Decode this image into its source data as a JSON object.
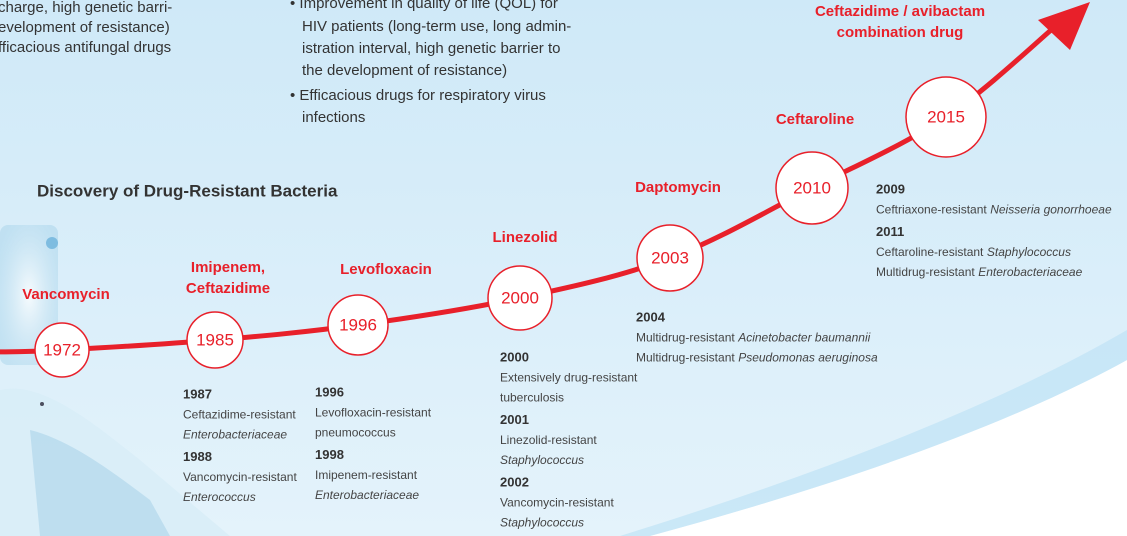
{
  "top_left": [
    "charge, high genetic barri-",
    "evelopment of resistance)",
    "fficacious antifungal drugs"
  ],
  "top_middle": [
    "• Improvement in quality of life (QOL) for",
    "HIV patients (long-term use, long admin-",
    "istration interval, high genetic barrier to",
    "the development of resistance)",
    "• Efficacious drugs for respiratory virus",
    "infections"
  ],
  "section_title": "Discovery of Drug-Resistant Bacteria",
  "nodes": [
    {
      "year": "1972",
      "drug": [
        "Vancomycin"
      ]
    },
    {
      "year": "1985",
      "drug": [
        "Imipenem,",
        "Ceftazidime"
      ]
    },
    {
      "year": "1996",
      "drug": [
        "Levofloxacin"
      ]
    },
    {
      "year": "2000",
      "drug": [
        "Linezolid"
      ]
    },
    {
      "year": "2003",
      "drug": [
        "Daptomycin"
      ]
    },
    {
      "year": "2010",
      "drug": [
        "Ceftaroline"
      ]
    },
    {
      "year": "2015",
      "drug": [
        "Ceftazidime / avibactam",
        "combination drug"
      ]
    }
  ],
  "notes": [
    {
      "entries": [
        {
          "year": "1987",
          "lines": [
            [
              {
                "text": "Ceftazidime-resistant"
              }
            ],
            [
              {
                "text": "Enterobacteriaceae",
                "italic": true
              }
            ]
          ]
        },
        {
          "year": "1988",
          "lines": [
            [
              {
                "text": "Vancomycin-resistant"
              }
            ],
            [
              {
                "text": "Enterococcus",
                "italic": true
              }
            ]
          ]
        }
      ]
    },
    {
      "entries": [
        {
          "year": "1996",
          "lines": [
            [
              {
                "text": "Levofloxacin-resistant"
              }
            ],
            [
              {
                "text": "pneumococcus"
              }
            ]
          ]
        },
        {
          "year": "1998",
          "lines": [
            [
              {
                "text": "Imipenem-resistant"
              }
            ],
            [
              {
                "text": "Enterobacteriaceae",
                "italic": true
              }
            ]
          ]
        }
      ]
    },
    {
      "entries": [
        {
          "year": "2000",
          "lines": [
            [
              {
                "text": "Extensively drug-resistant"
              }
            ],
            [
              {
                "text": "tuberculosis"
              }
            ]
          ]
        },
        {
          "year": "2001",
          "lines": [
            [
              {
                "text": "Linezolid-resistant"
              }
            ],
            [
              {
                "text": "Staphylococcus",
                "italic": true
              }
            ]
          ]
        },
        {
          "year": "2002",
          "lines": [
            [
              {
                "text": "Vancomycin-resistant"
              }
            ],
            [
              {
                "text": "Staphylococcus",
                "italic": true
              }
            ]
          ]
        }
      ]
    },
    {
      "entries": [
        {
          "year": "2004",
          "lines": [
            [
              {
                "text": "Multidrug-resistant"
              },
              {
                "text": "Acinetobacter baumannii",
                "italic": true
              }
            ],
            [
              {
                "text": "Multidrug-resistant"
              },
              {
                "text": "Pseudomonas aeruginosa",
                "italic": true
              }
            ]
          ]
        }
      ]
    },
    {
      "entries": [
        {
          "year": "2009",
          "lines": [
            [
              {
                "text": "Ceftriaxone-resistant"
              },
              {
                "text": "Neisseria gonorrhoeae",
                "italic": true
              }
            ]
          ]
        },
        {
          "year": "2011",
          "lines": [
            [
              {
                "text": "Ceftaroline-resistant"
              },
              {
                "text": "Staphylococcus",
                "italic": true
              }
            ],
            [
              {
                "text": "Multidrug-resistant"
              },
              {
                "text": "Enterobacteriaceae",
                "italic": true
              }
            ]
          ]
        }
      ]
    }
  ]
}
